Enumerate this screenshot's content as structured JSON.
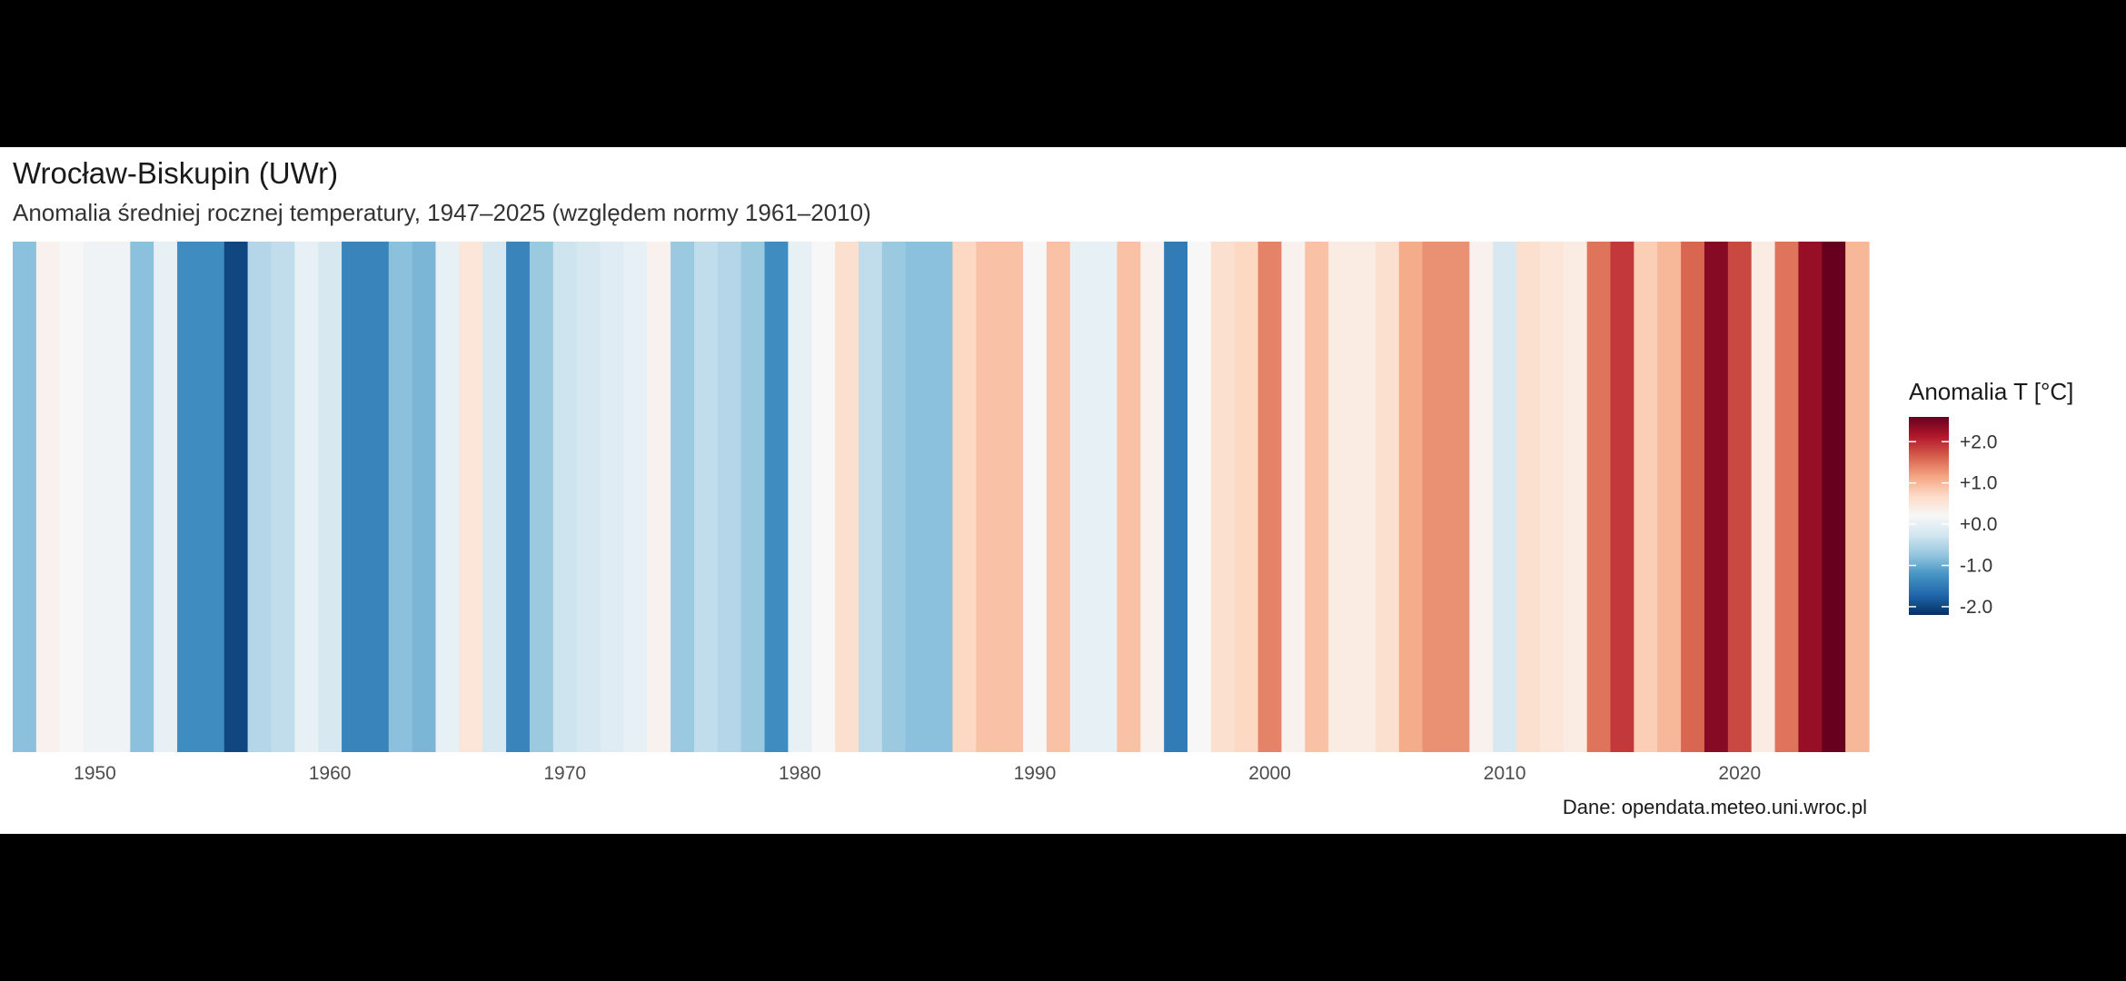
{
  "chart_data": {
    "type": "heatmap",
    "title": "Wrocław-Biskupin (UWr)",
    "subtitle": "Anomalia średniej rocznej temperatury, 1947–2025 (względem normy 1961–2010)",
    "caption": "Dane: opendata.meteo.uni.wroc.pl",
    "xlabel": "",
    "ylabel": "",
    "x_ticks": [
      1950,
      1960,
      1970,
      1980,
      1990,
      2000,
      2010,
      2020
    ],
    "xlim": [
      1947,
      2025
    ],
    "years": [
      1947,
      1948,
      1949,
      1950,
      1951,
      1952,
      1953,
      1954,
      1955,
      1956,
      1957,
      1958,
      1959,
      1960,
      1961,
      1962,
      1963,
      1964,
      1965,
      1966,
      1967,
      1968,
      1969,
      1970,
      1971,
      1972,
      1973,
      1974,
      1975,
      1976,
      1977,
      1978,
      1979,
      1980,
      1981,
      1982,
      1983,
      1984,
      1985,
      1986,
      1987,
      1988,
      1989,
      1990,
      1991,
      1992,
      1993,
      1994,
      1995,
      1996,
      1997,
      1998,
      1999,
      2000,
      2001,
      2002,
      2003,
      2004,
      2005,
      2006,
      2007,
      2008,
      2009,
      2010,
      2011,
      2012,
      2013,
      2014,
      2015,
      2016,
      2017,
      2018,
      2019,
      2020,
      2021,
      2022,
      2023,
      2024,
      2025
    ],
    "values": [
      -0.8,
      0.3,
      0.2,
      0.1,
      0.1,
      -0.8,
      0.0,
      -1.3,
      -1.3,
      -2.0,
      -0.5,
      -0.4,
      0.0,
      -0.2,
      -1.4,
      -1.4,
      -0.8,
      -0.9,
      0.0,
      0.5,
      -0.2,
      -1.4,
      -0.7,
      -0.3,
      -0.2,
      -0.1,
      0.0,
      0.3,
      -0.7,
      -0.4,
      -0.5,
      -0.7,
      -1.3,
      0.0,
      0.2,
      0.6,
      -0.4,
      -0.7,
      -0.8,
      -0.8,
      0.7,
      0.9,
      0.9,
      0.2,
      0.9,
      0.0,
      0.0,
      0.9,
      0.3,
      -1.5,
      0.2,
      0.6,
      0.7,
      1.4,
      0.3,
      0.9,
      0.4,
      0.4,
      0.6,
      1.1,
      1.3,
      1.3,
      0.3,
      -0.2,
      0.6,
      0.5,
      0.4,
      1.5,
      1.9,
      0.8,
      1.0,
      1.6,
      2.4,
      1.8,
      0.4,
      1.5,
      2.3,
      2.6,
      1.0
    ],
    "color_scale": {
      "name": "Anomalia T [°C]",
      "limits": [
        -2.2,
        2.6
      ],
      "breaks": [
        2.0,
        1.0,
        0.0,
        -1.0,
        -2.0
      ],
      "break_labels": [
        "+2.0",
        "+1.0",
        "+0.0",
        "-1.0",
        "-2.0"
      ],
      "stops_colors": [
        "#053061",
        "#2166ac",
        "#4393c3",
        "#92c5de",
        "#d1e5f0",
        "#f7f7f7",
        "#fddbc7",
        "#f4a582",
        "#d6604d",
        "#b2182b",
        "#67001f"
      ]
    },
    "grid": false,
    "legend_position": "right"
  }
}
